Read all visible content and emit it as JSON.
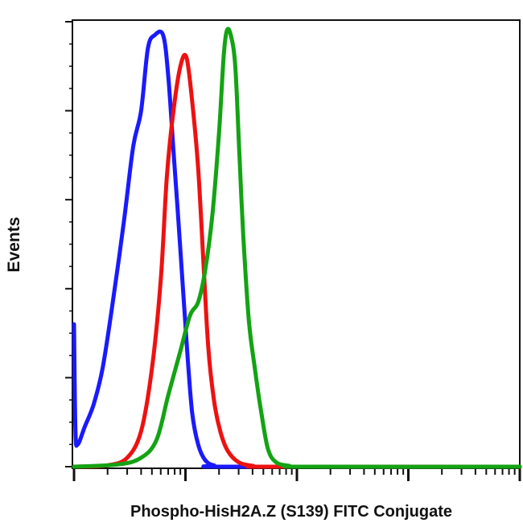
{
  "chart_data": {
    "type": "line",
    "title": "",
    "xlabel": "Phospho-HisH2A.Z (S139) FITC Conjugate",
    "ylabel": "Events",
    "x_scale": "log",
    "xlim": [
      1,
      10000
    ],
    "ylim": [
      0,
      100
    ],
    "grid": false,
    "legend": "none",
    "series": [
      {
        "color": "#1a1aff",
        "points": [
          [
            1.0,
            32
          ],
          [
            1.03,
            8
          ],
          [
            1.08,
            5
          ],
          [
            1.25,
            9
          ],
          [
            1.5,
            14
          ],
          [
            1.8,
            22
          ],
          [
            2.2,
            36
          ],
          [
            2.8,
            55
          ],
          [
            3.4,
            72
          ],
          [
            4.0,
            80
          ],
          [
            4.6,
            94
          ],
          [
            5.3,
            97
          ],
          [
            6.3,
            97
          ],
          [
            7.0,
            88
          ],
          [
            7.8,
            71
          ],
          [
            8.5,
            58
          ],
          [
            9.5,
            40
          ],
          [
            10.5,
            24
          ],
          [
            11.5,
            12
          ],
          [
            13.0,
            5
          ],
          [
            15.0,
            1.5
          ],
          [
            18.0,
            0.3
          ],
          [
            25.0,
            0
          ],
          [
            10000,
            0
          ]
        ]
      },
      {
        "color": "#ee1111",
        "points": [
          [
            1.0,
            0
          ],
          [
            2.0,
            0.3
          ],
          [
            3.0,
            2
          ],
          [
            4.0,
            8
          ],
          [
            5.0,
            22
          ],
          [
            6.0,
            42
          ],
          [
            6.8,
            65
          ],
          [
            7.8,
            80
          ],
          [
            9.0,
            90
          ],
          [
            10.2,
            92
          ],
          [
            11.5,
            82
          ],
          [
            13.0,
            67
          ],
          [
            14.5,
            46
          ],
          [
            16.0,
            27
          ],
          [
            18.0,
            15
          ],
          [
            20.5,
            8
          ],
          [
            24.0,
            3.5
          ],
          [
            30.0,
            1
          ],
          [
            40.0,
            0.2
          ],
          [
            60.0,
            0
          ],
          [
            10000,
            0
          ]
        ]
      },
      {
        "color": "#13a313",
        "points": [
          [
            1.0,
            0
          ],
          [
            2.5,
            0.5
          ],
          [
            4.0,
            2
          ],
          [
            5.5,
            6
          ],
          [
            7.0,
            16
          ],
          [
            9.0,
            26
          ],
          [
            11.0,
            34
          ],
          [
            13.0,
            37
          ],
          [
            15.0,
            44
          ],
          [
            17.5,
            57
          ],
          [
            20.0,
            75
          ],
          [
            22.0,
            92
          ],
          [
            23.5,
            98
          ],
          [
            25.5,
            97
          ],
          [
            28.0,
            90
          ],
          [
            30.5,
            70
          ],
          [
            33.0,
            52
          ],
          [
            37.0,
            33
          ],
          [
            42.0,
            22
          ],
          [
            48.0,
            12
          ],
          [
            55.0,
            4
          ],
          [
            65.0,
            1
          ],
          [
            85.0,
            0.2
          ],
          [
            120.0,
            0
          ],
          [
            10000,
            0
          ]
        ]
      }
    ]
  }
}
